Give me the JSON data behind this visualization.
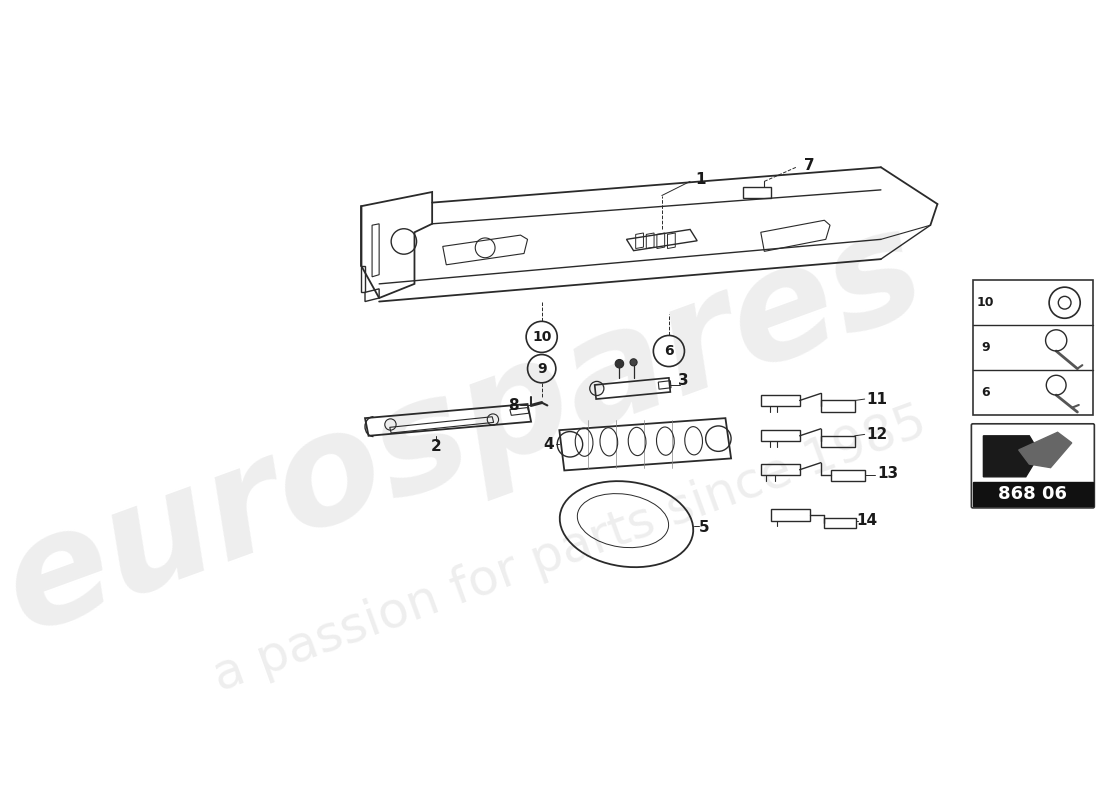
{
  "bg_color": "#ffffff",
  "watermark_text1": "eurospares",
  "watermark_text2": "a passion for parts since 1985",
  "label_code": "868 06",
  "line_color": "#2a2a2a",
  "text_color": "#1a1a1a",
  "label_fontsize": 11,
  "ref_fontsize": 9,
  "watermark_color": "#c8c8c8",
  "watermark_alpha": 0.3
}
